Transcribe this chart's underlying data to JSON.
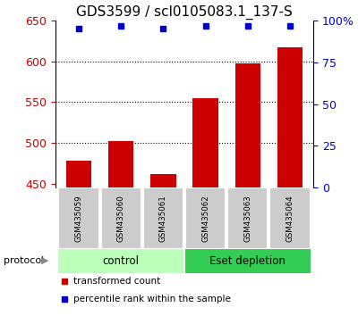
{
  "title": "GDS3599 / scl0105083.1_137-S",
  "samples": [
    "GSM435059",
    "GSM435060",
    "GSM435061",
    "GSM435062",
    "GSM435063",
    "GSM435064"
  ],
  "transformed_counts": [
    478,
    502,
    462,
    555,
    597,
    617
  ],
  "percentile_ranks": [
    95,
    97,
    95,
    97,
    97,
    97
  ],
  "ylim_left": [
    445,
    650
  ],
  "ylim_right": [
    0,
    100
  ],
  "yticks_left": [
    450,
    500,
    550,
    600,
    650
  ],
  "yticks_right": [
    0,
    25,
    50,
    75,
    100
  ],
  "ytick_labels_right": [
    "0",
    "25",
    "50",
    "75",
    "100%"
  ],
  "bar_color": "#cc0000",
  "dot_color": "#0000cc",
  "groups": [
    {
      "label": "control",
      "samples": [
        0,
        1,
        2
      ],
      "color": "#bbffbb"
    },
    {
      "label": "Eset depletion",
      "samples": [
        3,
        4,
        5
      ],
      "color": "#33cc55"
    }
  ],
  "protocol_label": "protocol",
  "legend_items": [
    {
      "color": "#cc0000",
      "label": "transformed count"
    },
    {
      "color": "#0000cc",
      "label": "percentile rank within the sample"
    }
  ],
  "grid_color": "black",
  "background_color": "#ffffff",
  "sample_box_color": "#cccccc",
  "title_fontsize": 11,
  "axis_fontsize": 9
}
